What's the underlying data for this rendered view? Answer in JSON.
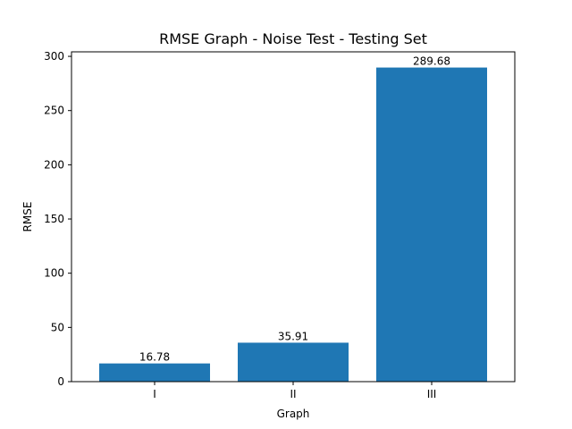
{
  "chart_data": {
    "type": "bar",
    "title": "RMSE Graph - Noise Test - Testing Set",
    "xlabel": "Graph",
    "ylabel": "RMSE",
    "categories": [
      "I",
      "II",
      "III"
    ],
    "values": [
      16.78,
      35.91,
      289.68
    ],
    "data_labels": [
      "16.78",
      "35.91",
      "289.68"
    ],
    "ylim": [
      0,
      304.164
    ],
    "yticks": [
      0,
      50,
      100,
      150,
      200,
      250,
      300
    ],
    "grid": false,
    "legend": "none",
    "bar_color": "#1f77b4"
  }
}
